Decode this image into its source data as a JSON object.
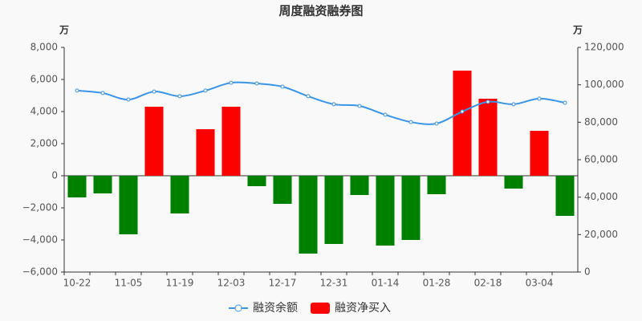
{
  "chart_data": {
    "type": "bar_line",
    "title": "周度融资融券图",
    "y_unit": "万",
    "y2_unit": "万",
    "categories": [
      "10-22",
      null,
      "11-05",
      null,
      "11-19",
      null,
      "12-03",
      null,
      "12-17",
      null,
      "12-31",
      null,
      "01-14",
      null,
      "01-28",
      null,
      "02-18",
      null,
      "03-04",
      null
    ],
    "series": [
      {
        "name": "融资余额",
        "type": "line",
        "axis": "y2",
        "color": "#3a95e8",
        "values": [
          96900,
          95600,
          92100,
          96400,
          93900,
          96900,
          101100,
          100700,
          99000,
          93900,
          89600,
          88700,
          84000,
          80100,
          79300,
          85700,
          90900,
          89600,
          92600,
          90400
        ]
      },
      {
        "name": "融资净买入",
        "type": "bar",
        "axis": "y",
        "color": "#ff0000",
        "negative_color": "#008000",
        "values": [
          -1350,
          -1100,
          -3650,
          4300,
          -2350,
          2900,
          4300,
          -650,
          -1750,
          -4850,
          -4250,
          -1200,
          -4350,
          -4000,
          -1150,
          6550,
          4800,
          -800,
          2800,
          -2500
        ]
      }
    ],
    "ylim": [
      -6000,
      8000
    ],
    "yticks": [
      {
        "value": -6000,
        "label": "−6,000"
      },
      {
        "value": -4000,
        "label": "−4,000"
      },
      {
        "value": -2000,
        "label": "−2,000"
      },
      0,
      {
        "value": 2000,
        "label": "2,000"
      },
      {
        "value": 4000,
        "label": "4,000"
      },
      {
        "value": 6000,
        "label": "6,000"
      },
      {
        "value": 8000,
        "label": "8,000"
      }
    ],
    "y2lim": [
      0,
      120000
    ],
    "y2ticks": [
      0,
      {
        "value": 20000,
        "label": "20,000"
      },
      {
        "value": 40000,
        "label": "40,000"
      },
      {
        "value": 60000,
        "label": "60,000"
      },
      {
        "value": 80000,
        "label": "80,000"
      },
      {
        "value": 100000,
        "label": "100,000"
      },
      {
        "value": 120000,
        "label": "120,000"
      }
    ],
    "legend": "bottom"
  }
}
